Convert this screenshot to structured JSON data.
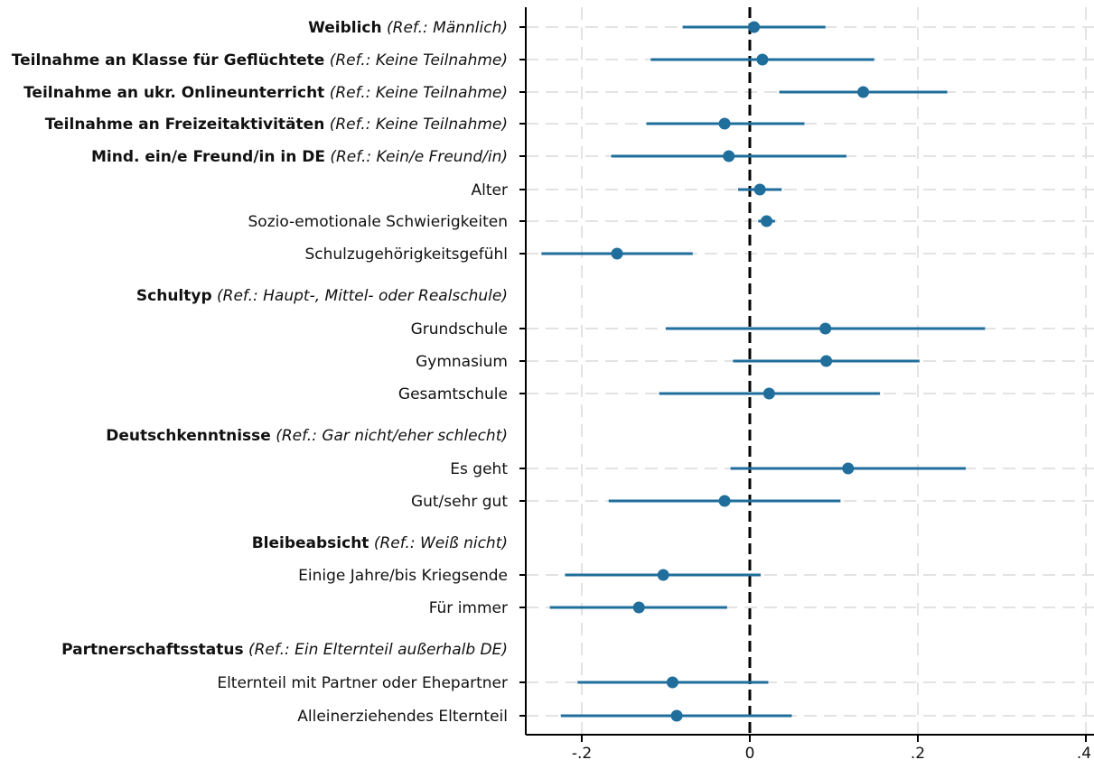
{
  "chart_data": {
    "type": "coefficient-plot",
    "xlim": [
      -0.26,
      0.4
    ],
    "xticks": [
      {
        "value": -0.2,
        "label": "-.2"
      },
      {
        "value": 0,
        "label": "0"
      },
      {
        "value": 0.2,
        "label": ".2"
      },
      {
        "value": 0.4,
        "label": ".4"
      }
    ],
    "grid": true,
    "reference_line": 0,
    "colors": {
      "marker": "#1f6e9c",
      "grid": "#e3e3e3",
      "axis": "#000000"
    },
    "rows": [
      {
        "main": "Weiblich",
        "ref": "(Ref.: Männlich)",
        "est": 0.005,
        "lo": -0.08,
        "hi": 0.09
      },
      {
        "main": "Teilnahme an Klasse für Geflüchtete",
        "ref": "(Ref.: Keine Teilnahme)",
        "est": 0.015,
        "lo": -0.118,
        "hi": 0.148
      },
      {
        "main": "Teilnahme an ukr. Onlineunterricht",
        "ref": "(Ref.: Keine Teilnahme)",
        "est": 0.135,
        "lo": 0.035,
        "hi": 0.235
      },
      {
        "main": "Teilnahme an Freizeitaktivitäten",
        "ref": "(Ref.: Keine Teilnahme)",
        "est": -0.03,
        "lo": -0.123,
        "hi": 0.065
      },
      {
        "main": "Mind. ein/e Freund/in in DE",
        "ref": "(Ref.: Kein/e Freund/in)",
        "est": -0.025,
        "lo": -0.165,
        "hi": 0.115
      },
      {
        "plain": "Alter",
        "est": 0.012,
        "lo": -0.014,
        "hi": 0.038
      },
      {
        "plain": "Sozio-emotionale Schwierigkeiten",
        "est": 0.02,
        "lo": 0.01,
        "hi": 0.03
      },
      {
        "plain": "Schulzugehörigkeitsgefühl",
        "est": -0.158,
        "lo": -0.248,
        "hi": -0.068
      },
      {
        "header": "Schultyp",
        "ref": "(Ref.: Haupt-, Mittel- oder Realschule)"
      },
      {
        "plain": "Grundschule",
        "est": 0.09,
        "lo": -0.1,
        "hi": 0.28
      },
      {
        "plain": "Gymnasium",
        "est": 0.091,
        "lo": -0.02,
        "hi": 0.202
      },
      {
        "plain": "Gesamtschule",
        "est": 0.023,
        "lo": -0.108,
        "hi": 0.155
      },
      {
        "header": "Deutschkenntnisse",
        "ref": "(Ref.: Gar nicht/eher schlecht)"
      },
      {
        "plain": "Es geht",
        "est": 0.117,
        "lo": -0.023,
        "hi": 0.257
      },
      {
        "plain": "Gut/sehr gut",
        "est": -0.03,
        "lo": -0.168,
        "hi": 0.108
      },
      {
        "header": "Bleibeabsicht",
        "ref": "(Ref.: Weiß nicht)"
      },
      {
        "plain": "Einige Jahre/bis Kriegsende",
        "est": -0.103,
        "lo": -0.22,
        "hi": 0.013
      },
      {
        "plain": "Für immer",
        "est": -0.132,
        "lo": -0.238,
        "hi": -0.027
      },
      {
        "header": "Partnerschaftsstatus",
        "ref": "(Ref.: Ein Elternteil außerhalb DE)"
      },
      {
        "plain": "Elternteil mit Partner oder Ehepartner",
        "est": -0.092,
        "lo": -0.205,
        "hi": 0.022
      },
      {
        "plain": "Alleinerziehendes Elternteil",
        "est": -0.087,
        "lo": -0.225,
        "hi": 0.05
      }
    ]
  }
}
